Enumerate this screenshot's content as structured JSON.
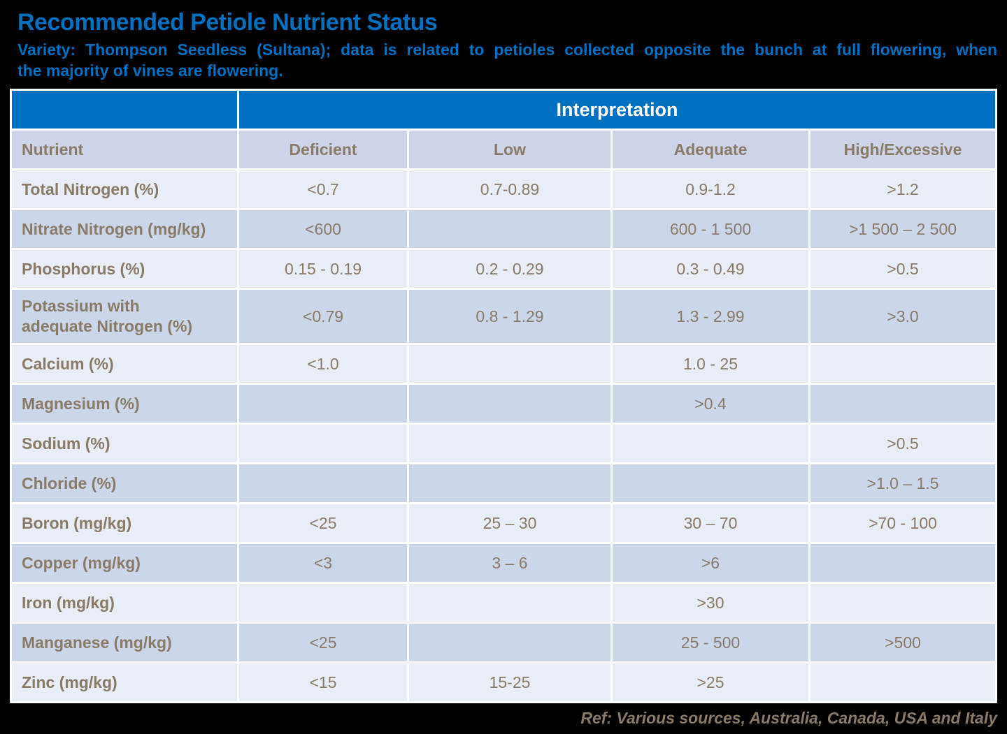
{
  "page": {
    "title": "Recommended Petiole Nutrient Status",
    "subtitle_line1": "Variety: Thompson Seedless (Sultana); data is related to petioles collected opposite the bunch at full flowering, when",
    "subtitle_line2": "the majority of vines are flowering.",
    "footer": "Ref: Various sources, Australia,  Canada,  USA and Italy"
  },
  "table": {
    "interpretation_header": "Interpretation",
    "columns": [
      "Nutrient",
      "Deficient",
      "Low",
      "Adequate",
      "High/Excessive"
    ],
    "rows": [
      {
        "nutrient": "Total Nitrogen (%)",
        "values": [
          "<0.7",
          "0.7-0.89",
          "0.9-1.2",
          ">1.2"
        ]
      },
      {
        "nutrient": "Nitrate Nitrogen (mg/kg)",
        "values": [
          "<600",
          "",
          "600 - 1 500",
          ">1 500 – 2 500"
        ]
      },
      {
        "nutrient": "Phosphorus (%)",
        "values": [
          "0.15 - 0.19",
          "0.2 - 0.29",
          "0.3 - 0.49",
          ">0.5"
        ]
      },
      {
        "nutrient": "Potassium with\nadequate Nitrogen (%)",
        "values": [
          "<0.79",
          "0.8 - 1.29",
          "1.3 - 2.99",
          ">3.0"
        ]
      },
      {
        "nutrient": "Calcium (%)",
        "values": [
          "<1.0",
          "",
          "1.0 - 25",
          ""
        ]
      },
      {
        "nutrient": "Magnesium (%)",
        "values": [
          "",
          "",
          ">0.4",
          ""
        ]
      },
      {
        "nutrient": "Sodium (%)",
        "values": [
          "",
          "",
          "",
          ">0.5"
        ]
      },
      {
        "nutrient": "Chloride (%)",
        "values": [
          "",
          "",
          "",
          ">1.0 – 1.5"
        ]
      },
      {
        "nutrient": "Boron (mg/kg)",
        "values": [
          "<25",
          "25 – 30",
          "30 – 70",
          ">70 - 100"
        ]
      },
      {
        "nutrient": "Copper (mg/kg)",
        "values": [
          "<3",
          "3 – 6",
          ">6",
          ""
        ]
      },
      {
        "nutrient": "Iron (mg/kg)",
        "values": [
          "",
          "",
          ">30",
          ""
        ]
      },
      {
        "nutrient": "Manganese (mg/kg)",
        "values": [
          "<25",
          "",
          "25 - 500",
          ">500"
        ]
      },
      {
        "nutrient": "Zinc (mg/kg)",
        "values": [
          "<15",
          "15-25",
          ">25",
          ""
        ]
      }
    ]
  },
  "colors": {
    "accent-blue": "#0070C0",
    "text-brown": "#8A7A68",
    "row-light": "#E9EDF5",
    "row-dark": "#CBD6E9",
    "header-row": "#CED4E7",
    "grid-white": "#FFFFFF",
    "page-bg": "#000000"
  }
}
